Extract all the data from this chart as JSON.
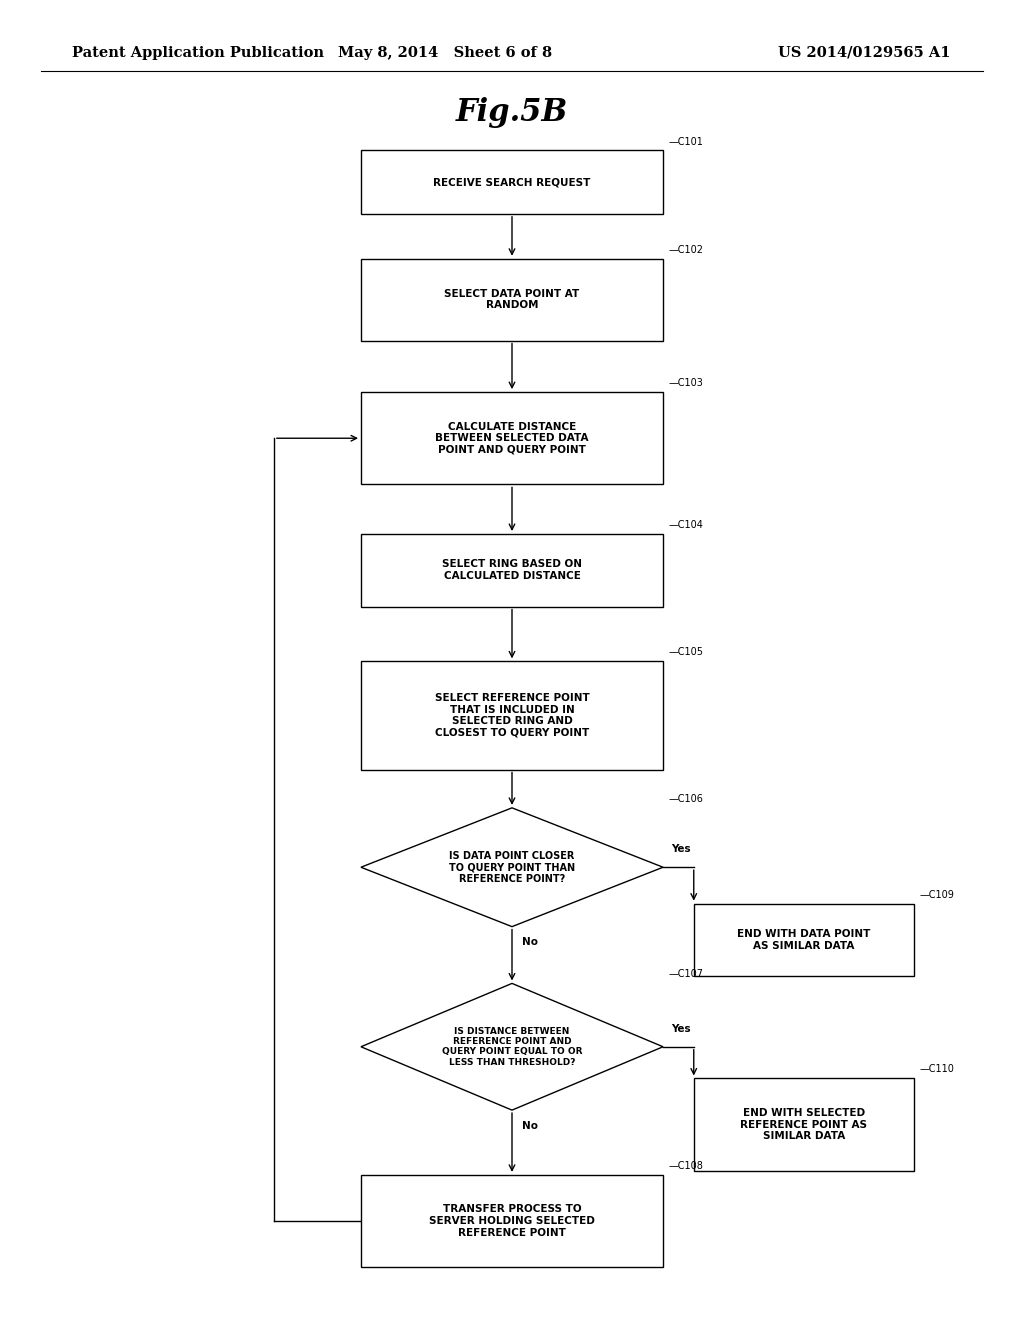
{
  "background_color": "#ffffff",
  "header_left": "Patent Application Publication",
  "header_middle": "May 8, 2014   Sheet 6 of 8",
  "header_right": "US 2014/0129565 A1",
  "figure_title": "Fig.5B",
  "line_color": "#000000",
  "text_color": "#000000",
  "font_size_nodes": 7.5,
  "font_size_header": 10.5,
  "font_size_title": 22
}
